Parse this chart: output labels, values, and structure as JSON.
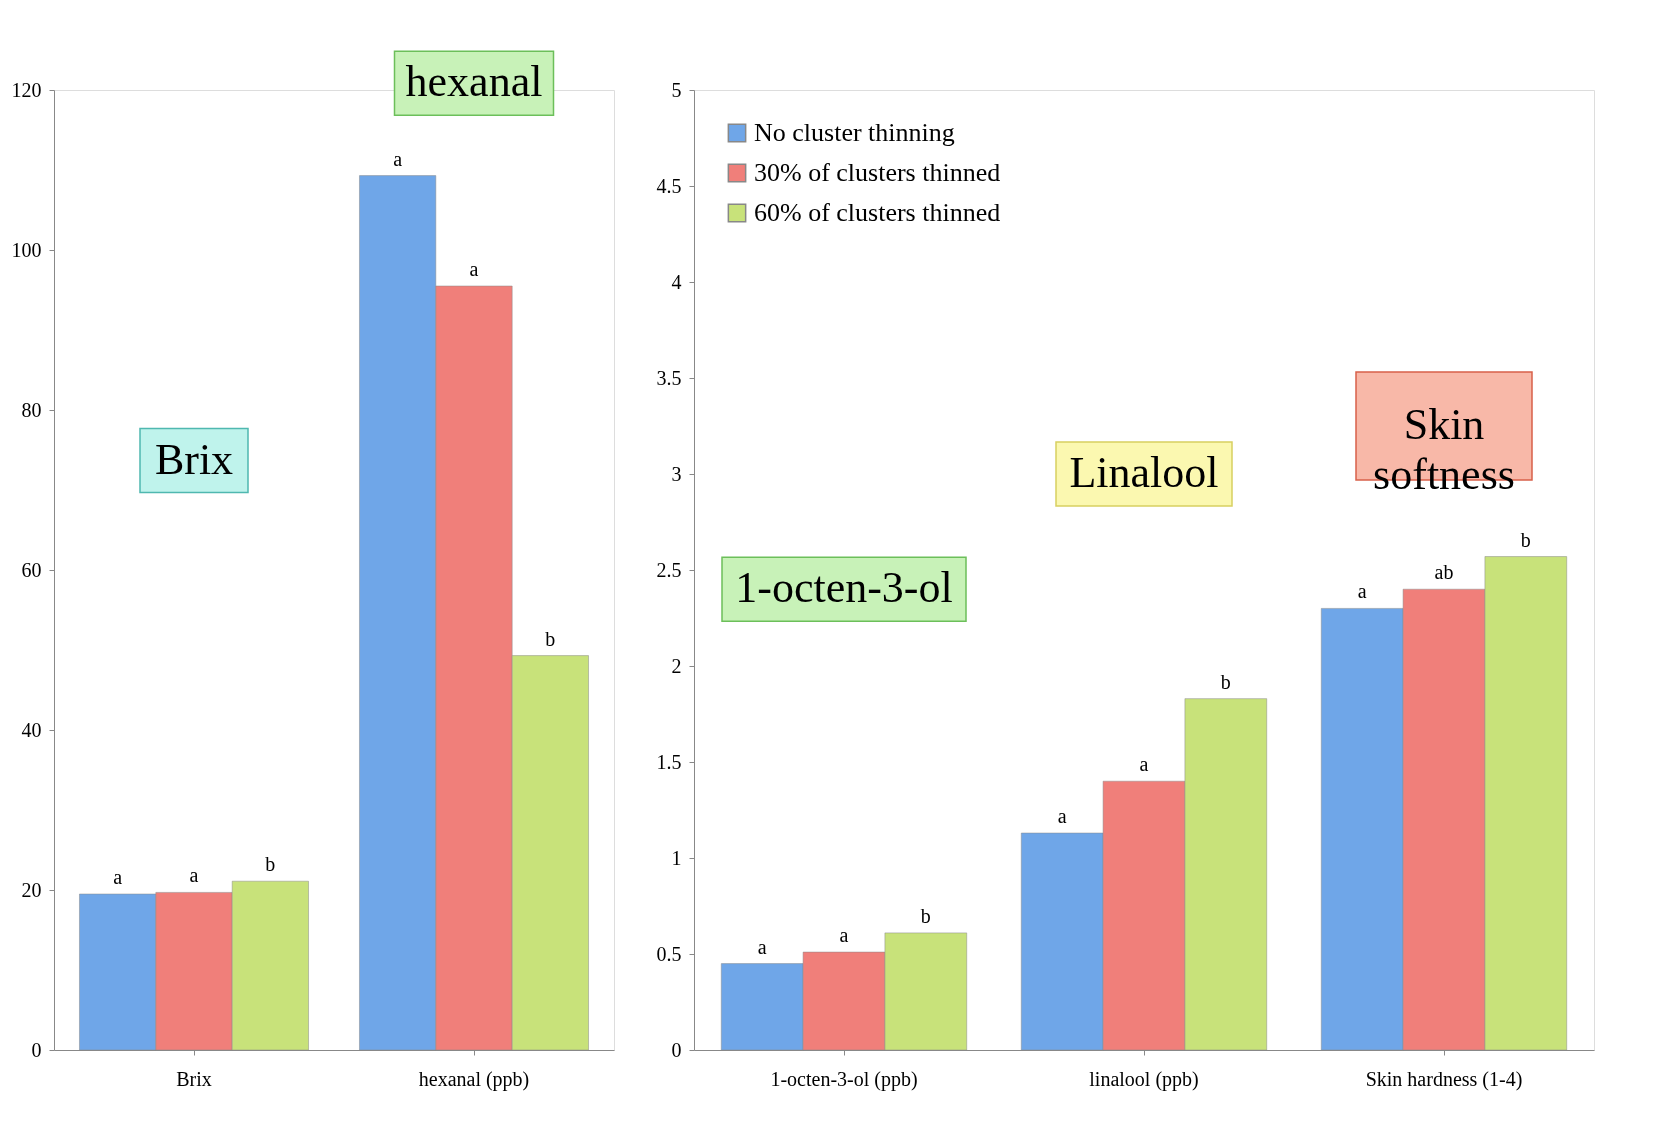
{
  "chart_data": [
    {
      "type": "bar",
      "categories": [
        "Brix",
        "hexanal (ppb)"
      ],
      "ylim": [
        0,
        120
      ],
      "yticks": [
        0,
        20,
        40,
        60,
        80,
        100,
        120
      ],
      "grid": false,
      "legend": false,
      "series": [
        {
          "color": "#6fa6e8",
          "values": [
            19.5,
            109.3
          ],
          "value_labels": [
            "a",
            "a"
          ]
        },
        {
          "color": "#f07f7a",
          "values": [
            19.7,
            95.5
          ],
          "value_labels": [
            "a",
            "a"
          ]
        },
        {
          "color": "#c8e27a",
          "values": [
            21.1,
            49.3
          ],
          "value_labels": [
            "b",
            "b"
          ]
        }
      ],
      "annotations": [
        "Brix",
        "hexanal"
      ]
    },
    {
      "type": "bar",
      "categories": [
        "1-octen-3-ol (ppb)",
        "linalool (ppb)",
        "Skin hardness (1-4)"
      ],
      "ylim": [
        0,
        5
      ],
      "yticks": [
        0,
        0.5,
        1,
        1.5,
        2,
        2.5,
        3,
        3.5,
        4,
        4.5,
        5
      ],
      "grid": false,
      "legend": "top left",
      "series": [
        {
          "name": "No cluster thinning",
          "color": "#6fa6e8",
          "values": [
            0.45,
            1.13,
            2.3
          ],
          "value_labels": [
            "a",
            "a",
            "a"
          ]
        },
        {
          "name": "30% of clusters thinned",
          "color": "#f07f7a",
          "values": [
            0.51,
            1.4,
            2.4
          ],
          "value_labels": [
            "a",
            "a",
            "ab"
          ]
        },
        {
          "name": "60% of clusters thinned",
          "color": "#c8e27a",
          "values": [
            0.61,
            1.83,
            2.57
          ],
          "value_labels": [
            "b",
            "b",
            "b"
          ]
        }
      ],
      "annotations": [
        "1-octen-3-ol",
        "Linalool",
        "Skin softness"
      ]
    }
  ]
}
